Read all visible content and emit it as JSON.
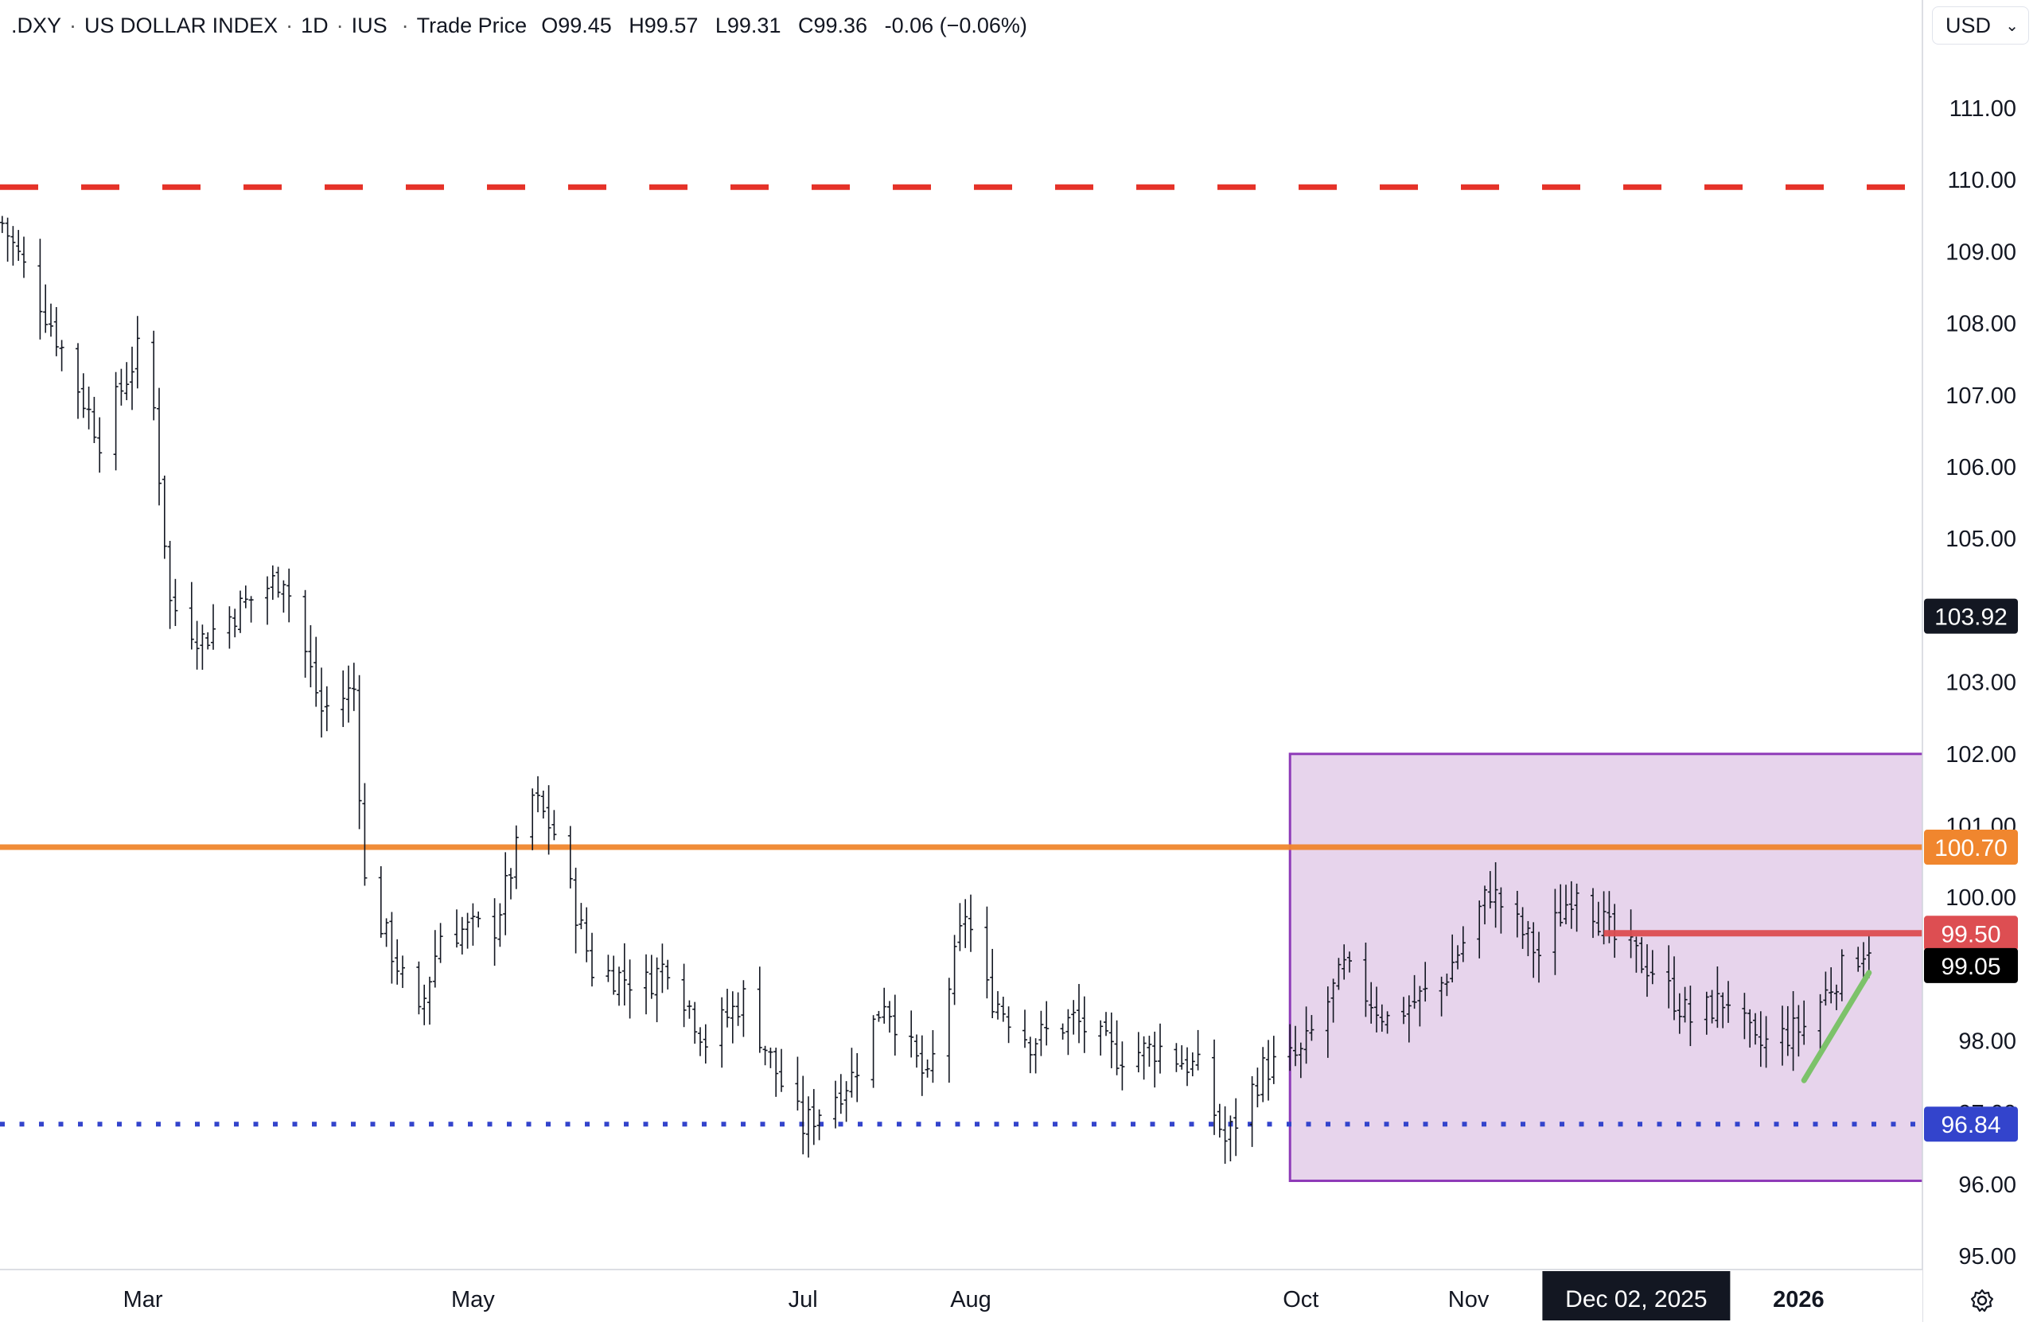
{
  "header": {
    "symbol": ".DXY",
    "name": "US DOLLAR INDEX",
    "interval": "1D",
    "exchange": "IUS",
    "price_type": "Trade Price",
    "open": "O99.45",
    "high": "H99.57",
    "low": "L99.31",
    "close": "C99.36",
    "change": "-0.06 (−0.06%)"
  },
  "currency": {
    "label": "USD"
  },
  "colors": {
    "resistance": "#e53228",
    "orange_line": "#f0862e",
    "support": "#3344cc",
    "box_border": "#8e3ab8",
    "box_fill": "#e7d4ec",
    "red_line": "#dd4e52",
    "green_trend": "#7cc26a",
    "bars": "#131722"
  },
  "chart_data": {
    "type": "ohlc",
    "title": "",
    "ylim": [
      94.75,
      111.7
    ],
    "y_ticks": [
      "111.00",
      "110.00",
      "109.00",
      "108.00",
      "107.00",
      "106.00",
      "105.00",
      "104.00",
      "103.00",
      "102.00",
      "101.00",
      "100.00",
      "99.00",
      "98.00",
      "97.00",
      "96.00",
      "95.00"
    ],
    "x_labels": [
      {
        "label": "Mar",
        "date": "2025-03-01"
      },
      {
        "label": "May",
        "date": "2025-05-01"
      },
      {
        "label": "Jul",
        "date": "2025-07-01"
      },
      {
        "label": "Aug",
        "date": "2025-08-01"
      },
      {
        "label": "Oct",
        "date": "2025-10-01"
      },
      {
        "label": "Nov",
        "date": "2025-11-01"
      },
      {
        "label": "2026",
        "date": "2026-01-01"
      }
    ],
    "crosshair_x": {
      "label": "Dec 02, 2025",
      "date": "2025-12-02"
    },
    "price_badges": [
      {
        "label": "103.92",
        "value": 103.92,
        "bg": "#131722",
        "fg": "#ffffff"
      },
      {
        "label": "100.70",
        "value": 100.7,
        "bg": "#f0862e",
        "fg": "#ffffff"
      },
      {
        "label": "99.50",
        "value": 99.5,
        "bg": "#dd4e52",
        "fg": "#ffffff"
      },
      {
        "label": "99.05",
        "value": 99.05,
        "bg": "#000000",
        "fg": "#ffffff"
      },
      {
        "label": "96.84",
        "value": 96.84,
        "bg": "#3344cc",
        "fg": "#ffffff"
      }
    ],
    "horizontal_lines": [
      {
        "name": "resistance",
        "value": 109.9,
        "style": "dashed"
      },
      {
        "name": "orange",
        "value": 100.7,
        "style": "solid"
      },
      {
        "name": "support",
        "value": 96.84,
        "style": "dotted"
      }
    ],
    "range_box": {
      "start": "2025-09-29",
      "end": "2026-01-31",
      "top": 102.0,
      "bottom": 96.05
    },
    "red_segment": {
      "start": "2025-11-26",
      "end": "2026-01-31",
      "value": 99.5
    },
    "green_trend": {
      "start": [
        "2026-01-02",
        97.45
      ],
      "end": [
        "2026-01-14",
        98.95
      ]
    },
    "anchors": [
      [
        "2025-02-03",
        109.4
      ],
      [
        "2025-02-12",
        108.0
      ],
      [
        "2025-02-21",
        106.4
      ],
      [
        "2025-02-28",
        107.6
      ],
      [
        "2025-03-03",
        106.8
      ],
      [
        "2025-03-06",
        104.1
      ],
      [
        "2025-03-12",
        103.6
      ],
      [
        "2025-03-20",
        104.1
      ],
      [
        "2025-03-27",
        104.5
      ],
      [
        "2025-04-03",
        102.6
      ],
      [
        "2025-04-09",
        102.9
      ],
      [
        "2025-04-11",
        100.2
      ],
      [
        "2025-04-21",
        98.3
      ],
      [
        "2025-04-25",
        99.5
      ],
      [
        "2025-05-05",
        99.6
      ],
      [
        "2025-05-12",
        101.4
      ],
      [
        "2025-05-16",
        100.9
      ],
      [
        "2025-05-23",
        99.0
      ],
      [
        "2025-06-02",
        98.8
      ],
      [
        "2025-06-06",
        99.1
      ],
      [
        "2025-06-13",
        98.0
      ],
      [
        "2025-06-20",
        98.6
      ],
      [
        "2025-06-27",
        97.4
      ],
      [
        "2025-07-01",
        96.8
      ],
      [
        "2025-07-10",
        97.5
      ],
      [
        "2025-07-16",
        98.6
      ],
      [
        "2025-07-24",
        97.4
      ],
      [
        "2025-07-31",
        99.8
      ],
      [
        "2025-08-04",
        98.7
      ],
      [
        "2025-08-12",
        98.0
      ],
      [
        "2025-08-20",
        98.3
      ],
      [
        "2025-08-28",
        97.8
      ],
      [
        "2025-09-05",
        97.9
      ],
      [
        "2025-09-12",
        97.6
      ],
      [
        "2025-09-17",
        96.6
      ],
      [
        "2025-09-24",
        97.6
      ],
      [
        "2025-10-01",
        97.8
      ],
      [
        "2025-10-09",
        99.0
      ],
      [
        "2025-10-17",
        98.3
      ],
      [
        "2025-10-27",
        98.8
      ],
      [
        "2025-11-05",
        100.1
      ],
      [
        "2025-11-14",
        99.2
      ],
      [
        "2025-11-21",
        100.2
      ],
      [
        "2025-11-28",
        99.4
      ],
      [
        "2025-12-05",
        99.0
      ],
      [
        "2025-12-12",
        98.3
      ],
      [
        "2025-12-19",
        98.6
      ],
      [
        "2025-12-24",
        97.9
      ],
      [
        "2026-01-02",
        98.2
      ],
      [
        "2026-01-08",
        98.9
      ],
      [
        "2026-01-14",
        99.36
      ]
    ]
  }
}
